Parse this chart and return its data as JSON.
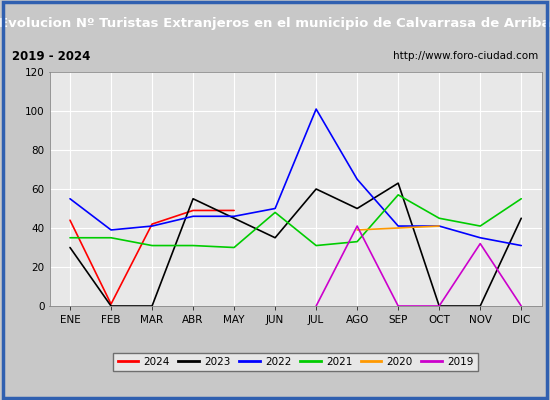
{
  "title": "Evolucion Nº Turistas Extranjeros en el municipio de Calvarrasa de Arriba",
  "subtitle_left": "2019 - 2024",
  "subtitle_right": "http://www.foro-ciudad.com",
  "months": [
    "ENE",
    "FEB",
    "MAR",
    "ABR",
    "MAY",
    "JUN",
    "JUL",
    "AGO",
    "SEP",
    "OCT",
    "NOV",
    "DIC"
  ],
  "series": {
    "2024": {
      "color": "#ff0000",
      "values": [
        44,
        1,
        42,
        49,
        49,
        null,
        null,
        null,
        null,
        null,
        null,
        null
      ]
    },
    "2023": {
      "color": "#000000",
      "values": [
        30,
        0,
        0,
        55,
        45,
        35,
        60,
        50,
        63,
        0,
        0,
        45
      ]
    },
    "2022": {
      "color": "#0000ff",
      "values": [
        55,
        39,
        41,
        46,
        46,
        50,
        101,
        65,
        41,
        41,
        35,
        31
      ]
    },
    "2021": {
      "color": "#00cc00",
      "values": [
        35,
        35,
        31,
        31,
        30,
        48,
        31,
        33,
        57,
        45,
        41,
        55
      ]
    },
    "2020": {
      "color": "#ff9900",
      "values": [
        null,
        null,
        null,
        null,
        null,
        null,
        null,
        39,
        40,
        41,
        null,
        null
      ]
    },
    "2019": {
      "color": "#cc00cc",
      "values": [
        null,
        null,
        null,
        null,
        null,
        null,
        0,
        41,
        0,
        0,
        32,
        0
      ]
    }
  },
  "ylim": [
    0,
    120
  ],
  "yticks": [
    0,
    20,
    40,
    60,
    80,
    100,
    120
  ],
  "title_bg_color": "#3060b0",
  "title_text_color": "#ffffff",
  "subtitle_bg_color": "#d4d4d4",
  "plot_bg_color": "#e8e8e8",
  "grid_color": "#ffffff",
  "fig_bg_color": "#c8c8c8",
  "legend_order": [
    "2024",
    "2023",
    "2022",
    "2021",
    "2020",
    "2019"
  ],
  "border_color": "#3060b0"
}
